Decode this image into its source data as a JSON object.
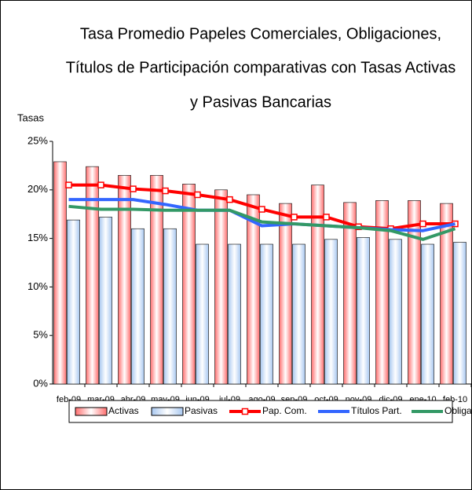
{
  "chart_data": {
    "type": "bar-line",
    "title": [
      "Tasa Promedio Papeles Comerciales, Obligaciones,",
      "Títulos de Participación comparativas  con Tasas Activas",
      "y Pasivas Bancarias"
    ],
    "y_label": "Tasas",
    "categories": [
      "feb-09",
      "mar-09",
      "abr-09",
      "may-09",
      "jun-09",
      "jul-09",
      "ago-09",
      "sep-09",
      "oct-09",
      "nov-09",
      "dic-09",
      "ene-10",
      "feb-10"
    ],
    "series": [
      {
        "name": "Activas",
        "kind": "bar",
        "color": "#ff6f6f",
        "values": [
          22.9,
          22.4,
          21.5,
          21.5,
          20.6,
          20.0,
          19.5,
          18.6,
          20.5,
          18.7,
          18.9,
          18.9,
          18.6
        ]
      },
      {
        "name": "Pasivas",
        "kind": "bar",
        "color": "#a9c8f0",
        "values": [
          16.9,
          17.2,
          16.0,
          16.0,
          14.4,
          14.4,
          14.4,
          14.4,
          14.9,
          15.1,
          14.9,
          14.4,
          14.6
        ]
      },
      {
        "name": "Pap. Com.",
        "kind": "line",
        "marker": "square",
        "color": "#ff0000",
        "values": [
          20.5,
          20.5,
          20.1,
          19.9,
          19.5,
          19.0,
          18.0,
          17.2,
          17.2,
          16.2,
          16.0,
          16.5,
          16.5
        ]
      },
      {
        "name": "Títulos Part.",
        "kind": "line",
        "color": "#3366ff",
        "values": [
          19.0,
          19.0,
          19.0,
          18.5,
          17.9,
          17.9,
          16.3,
          16.5,
          16.3,
          16.1,
          15.9,
          15.8,
          16.5
        ]
      },
      {
        "name": "Obliga.",
        "kind": "line",
        "color": "#339966",
        "values": [
          18.3,
          18.0,
          18.0,
          17.9,
          17.9,
          17.9,
          16.7,
          16.5,
          16.3,
          16.1,
          15.8,
          14.9,
          16.0
        ]
      }
    ],
    "ylim": [
      0,
      25
    ],
    "yticks": [
      {
        "value": 0,
        "label": "0%"
      },
      {
        "value": 5,
        "label": "5%"
      },
      {
        "value": 10,
        "label": "10%"
      },
      {
        "value": 15,
        "label": "15%"
      },
      {
        "value": 20,
        "label": "20%"
      },
      {
        "value": 25,
        "label": "25%"
      }
    ],
    "legend": "bottom"
  }
}
